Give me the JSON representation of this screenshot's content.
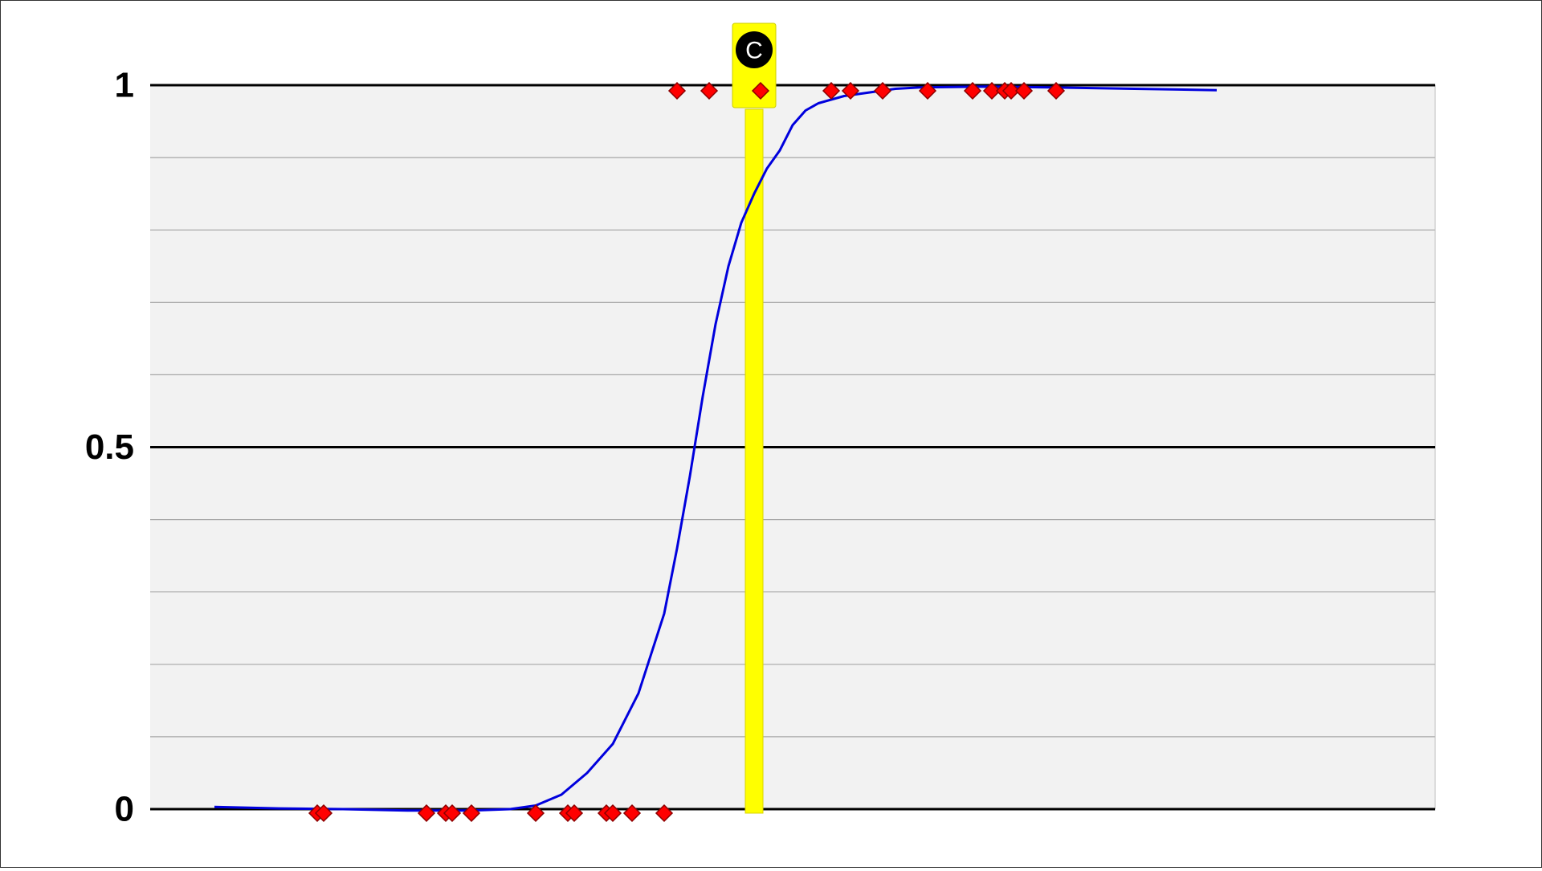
{
  "chart_data": {
    "type": "scatter",
    "title": "",
    "xlabel": "",
    "ylabel": "",
    "xlim": [
      0,
      100
    ],
    "ylim": [
      0,
      1
    ],
    "y_ticks": [
      {
        "value": 0,
        "label": "0"
      },
      {
        "value": 0.5,
        "label": "0.5"
      },
      {
        "value": 1,
        "label": "1"
      }
    ],
    "major_gridlines": [
      0,
      0.5,
      1
    ],
    "minor_gridlines": [
      0.1,
      0.2,
      0.3,
      0.4,
      0.6,
      0.7,
      0.8,
      0.9
    ],
    "grid": true,
    "legend": "none",
    "series": [
      {
        "kind": "points",
        "marker": "diamond",
        "color": "#ff0000",
        "x": [
          13,
          13.5,
          21.5,
          23,
          23.5,
          25,
          30,
          32.5,
          33,
          35.5,
          36,
          37.5,
          40,
          41,
          43.5,
          47.5,
          53,
          54.5,
          57,
          60.5,
          64,
          65.5,
          66.5,
          67,
          68,
          70.5
        ],
        "y": [
          0,
          0,
          0,
          0,
          0,
          0,
          0,
          0,
          0,
          0,
          0,
          0,
          0,
          1,
          1,
          1,
          1,
          1,
          1,
          1,
          1,
          1,
          1,
          1,
          1,
          1
        ]
      },
      {
        "kind": "curve",
        "color": "#0000dd",
        "x": [
          5,
          10,
          15,
          20,
          25,
          28,
          30,
          32,
          34,
          36,
          38,
          40,
          41,
          42,
          43,
          44,
          45,
          46,
          47,
          48,
          49,
          50,
          51,
          52,
          54,
          56,
          58,
          60,
          65,
          70,
          80,
          83
        ],
        "y": [
          0.003,
          0.001,
          0.0,
          -0.002,
          -0.002,
          0.0,
          0.005,
          0.02,
          0.05,
          0.09,
          0.16,
          0.27,
          0.36,
          0.46,
          0.57,
          0.67,
          0.75,
          0.81,
          0.85,
          0.885,
          0.91,
          0.945,
          0.965,
          0.975,
          0.985,
          0.99,
          0.995,
          0.997,
          0.998,
          0.997,
          0.994,
          0.993
        ]
      }
    ],
    "highlight": {
      "label": "C",
      "x": 47,
      "y": 1,
      "color": "#ffff00"
    }
  }
}
